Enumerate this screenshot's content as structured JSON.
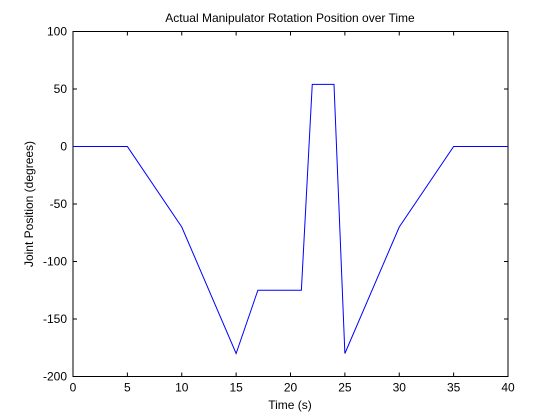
{
  "chart_data": {
    "type": "line",
    "title": "Actual Manipulator Rotation Position over Time",
    "xlabel": "Time (s)",
    "ylabel": "Joint Position (degrees)",
    "xlim": [
      0,
      40
    ],
    "ylim": [
      -200,
      100
    ],
    "xticks": [
      0,
      5,
      10,
      15,
      20,
      25,
      30,
      35,
      40
    ],
    "yticks": [
      -200,
      -150,
      -100,
      -50,
      0,
      50,
      100
    ],
    "xtick_labels": [
      "0",
      "5",
      "10",
      "15",
      "20",
      "25",
      "30",
      "35",
      "40"
    ],
    "ytick_labels": [
      "-200",
      "-150",
      "-100",
      "-50",
      "0",
      "50",
      "100"
    ],
    "grid": false,
    "series": [
      {
        "color": "#0000ff",
        "x": [
          0,
          5,
          10,
          15,
          17,
          21,
          22,
          24,
          25,
          30,
          35,
          40
        ],
        "y": [
          0,
          0,
          -70,
          -180,
          -125,
          -125,
          54,
          54,
          -180,
          -70,
          0,
          0
        ]
      }
    ]
  }
}
